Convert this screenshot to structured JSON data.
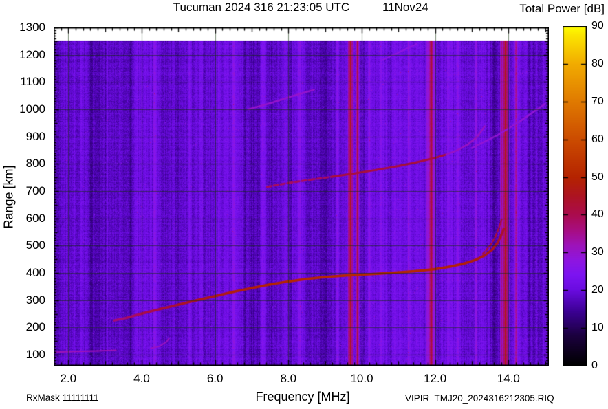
{
  "title": {
    "main": "Tucuman 2024 316 21:23:05 UTC",
    "date": "11Nov24"
  },
  "colorbar": {
    "label": "Total Power [dB]",
    "min": 0,
    "max": 90,
    "ticks": [
      {
        "v": 0,
        "label": "0"
      },
      {
        "v": 10,
        "label": "10"
      },
      {
        "v": 20,
        "label": "20"
      },
      {
        "v": 30,
        "label": "30"
      },
      {
        "v": 40,
        "label": "40"
      },
      {
        "v": 50,
        "label": "50"
      },
      {
        "v": 60,
        "label": "60"
      },
      {
        "v": 70,
        "label": "70"
      },
      {
        "v": 80,
        "label": "80"
      },
      {
        "v": 90,
        "label": "90"
      }
    ]
  },
  "axes": {
    "x_label": "Frequency [MHz]",
    "y_label": "Range [km]",
    "xlim": [
      1.6,
      15.1
    ],
    "ylim": [
      60,
      1300
    ],
    "x_ticks": [
      {
        "v": 2.0,
        "label": "2.0"
      },
      {
        "v": 4.0,
        "label": "4.0"
      },
      {
        "v": 6.0,
        "label": "6.0"
      },
      {
        "v": 8.0,
        "label": "8.0"
      },
      {
        "v": 10.0,
        "label": "10.0"
      },
      {
        "v": 12.0,
        "label": "12.0"
      },
      {
        "v": 14.0,
        "label": "14.0"
      }
    ],
    "y_ticks": [
      {
        "v": 100,
        "label": "100"
      },
      {
        "v": 200,
        "label": "200"
      },
      {
        "v": 300,
        "label": "300"
      },
      {
        "v": 400,
        "label": "400"
      },
      {
        "v": 500,
        "label": "500"
      },
      {
        "v": 600,
        "label": "600"
      },
      {
        "v": 700,
        "label": "700"
      },
      {
        "v": 800,
        "label": "800"
      },
      {
        "v": 900,
        "label": "900"
      },
      {
        "v": 1000,
        "label": "1000"
      },
      {
        "v": 1100,
        "label": "1100"
      },
      {
        "v": 1200,
        "label": "1200"
      },
      {
        "v": 1300,
        "label": "1300"
      }
    ]
  },
  "footer": {
    "rx_mask": "RxMask 11111111",
    "file": "VIPIR  TMJ20_2024316212305.RIQ"
  },
  "chart_data": {
    "type": "heatmap",
    "subtype": "ionogram-total-power",
    "title": "Tucuman 2024 316 21:23:05 UTC 11Nov24",
    "xlabel": "Frequency [MHz]",
    "ylabel": "Range [km]",
    "colorbar_label": "Total Power [dB]",
    "xlim": [
      1.6,
      15.1
    ],
    "ylim": [
      60,
      1300
    ],
    "zlim": [
      0,
      90
    ],
    "grid": true,
    "data_top_km": 1253,
    "background": {
      "base_db": 19.0,
      "column_jitter_db": 4.0,
      "pixel_noise_db": 4.6
    },
    "colormap_stops": [
      [
        0,
        "#000000"
      ],
      [
        8,
        "#1c0040"
      ],
      [
        14,
        "#3a0090"
      ],
      [
        20,
        "#6a0ce0"
      ],
      [
        24,
        "#7d14f2"
      ],
      [
        28,
        "#8f16e0"
      ],
      [
        32,
        "#9e13b8"
      ],
      [
        36,
        "#a80e80"
      ],
      [
        40,
        "#ab0c4e"
      ],
      [
        45,
        "#ad1422"
      ],
      [
        50,
        "#b52400"
      ],
      [
        60,
        "#cc4c00"
      ],
      [
        70,
        "#e07a00"
      ],
      [
        80,
        "#f2ac00"
      ],
      [
        88,
        "#fce800"
      ],
      [
        90,
        "#ffff00"
      ]
    ],
    "traces": [
      {
        "name": "E-layer-echo",
        "db": 32,
        "width": 2,
        "points": [
          [
            1.65,
            110
          ],
          [
            2.2,
            112
          ],
          [
            2.8,
            114
          ],
          [
            3.3,
            117
          ]
        ]
      },
      {
        "name": "Es-cusp",
        "db": 31,
        "width": 2,
        "points": [
          [
            4.25,
            124
          ],
          [
            4.5,
            132
          ],
          [
            4.68,
            148
          ],
          [
            4.75,
            162
          ]
        ]
      },
      {
        "name": "F-trace-1st-hop",
        "width": 3.5,
        "points": [
          [
            3.25,
            226,
            36
          ],
          [
            3.6,
            236,
            38
          ],
          [
            4.0,
            251,
            40
          ],
          [
            4.5,
            268,
            42
          ],
          [
            5.0,
            284,
            44
          ],
          [
            5.5,
            300,
            46
          ],
          [
            6.0,
            315,
            47
          ],
          [
            6.5,
            331,
            48
          ],
          [
            7.0,
            345,
            49
          ],
          [
            7.5,
            358,
            50
          ],
          [
            8.0,
            369,
            50
          ],
          [
            8.5,
            378,
            51
          ],
          [
            9.0,
            385,
            51
          ],
          [
            9.5,
            390,
            51
          ],
          [
            10.0,
            394,
            51
          ],
          [
            10.5,
            398,
            51
          ],
          [
            11.0,
            402,
            51
          ],
          [
            11.5,
            407,
            51
          ],
          [
            12.0,
            414,
            50
          ],
          [
            12.4,
            423,
            50
          ],
          [
            12.8,
            435,
            49
          ],
          [
            13.1,
            448,
            48
          ],
          [
            13.35,
            464,
            47
          ],
          [
            13.55,
            485,
            46
          ],
          [
            13.7,
            510,
            45
          ],
          [
            13.8,
            538,
            44
          ],
          [
            13.87,
            562,
            43
          ]
        ]
      },
      {
        "name": "F-cusp-spread",
        "db": 42,
        "width": 2.5,
        "dash": [
          4,
          3
        ],
        "points": [
          [
            13.3,
            470
          ],
          [
            13.5,
            500
          ],
          [
            13.65,
            535
          ],
          [
            13.75,
            570
          ],
          [
            13.82,
            600
          ]
        ]
      },
      {
        "name": "F-trace-2nd-hop-start",
        "db": 39,
        "width": 3,
        "dash": [
          6,
          4
        ],
        "points": [
          [
            7.42,
            716
          ],
          [
            8.0,
            730
          ],
          [
            8.6,
            742
          ],
          [
            9.2,
            753
          ]
        ]
      },
      {
        "name": "F-trace-2nd-hop",
        "db": 42,
        "width": 3,
        "points": [
          [
            9.2,
            753
          ],
          [
            9.8,
            765
          ],
          [
            10.4,
            778
          ],
          [
            11.0,
            792
          ],
          [
            11.5,
            806
          ],
          [
            12.0,
            822
          ],
          [
            12.3,
            834
          ]
        ]
      },
      {
        "name": "F-trace-2nd-hop-cusp",
        "db": 31,
        "width": 2.5,
        "points": [
          [
            12.3,
            834
          ],
          [
            12.6,
            850
          ],
          [
            12.9,
            872
          ],
          [
            13.15,
            900
          ],
          [
            13.35,
            938
          ]
        ]
      },
      {
        "name": "F-trace-3rd-hop-a",
        "db": 30,
        "width": 2.5,
        "points": [
          [
            6.9,
            1000
          ],
          [
            7.5,
            1022
          ],
          [
            8.1,
            1048
          ],
          [
            8.7,
            1072
          ]
        ]
      },
      {
        "name": "F-trace-3rd-hop-b",
        "db": 29,
        "width": 2.5,
        "points": [
          [
            13.0,
            858
          ],
          [
            13.7,
            905
          ],
          [
            14.3,
            955
          ],
          [
            15.0,
            1020
          ]
        ]
      },
      {
        "name": "F-trace-3rd-hop-c",
        "db": 28,
        "width": 2,
        "points": [
          [
            10.55,
            1180
          ],
          [
            11.0,
            1208
          ],
          [
            11.5,
            1240
          ]
        ]
      }
    ],
    "rfi_bands": [
      {
        "mhz": 2.35,
        "width": 0.1,
        "boost": 4
      },
      {
        "mhz": 3.05,
        "width": 0.08,
        "boost": 4
      },
      {
        "mhz": 4.35,
        "width": 0.1,
        "boost": 5
      },
      {
        "mhz": 5.3,
        "width": 0.08,
        "boost": 4
      },
      {
        "mhz": 6.1,
        "width": 0.06,
        "boost": 4
      },
      {
        "mhz": 6.5,
        "width": 0.08,
        "boost": 4
      },
      {
        "mhz": 7.32,
        "width": 0.26,
        "boost": 6
      },
      {
        "mhz": 8.3,
        "width": 0.1,
        "boost": 5
      },
      {
        "mhz": 8.8,
        "width": 0.08,
        "boost": 4
      },
      {
        "mhz": 9.33,
        "width": 0.1,
        "boost": 6
      },
      {
        "mhz": 10.2,
        "width": 0.1,
        "boost": 5
      },
      {
        "mhz": 10.5,
        "width": 0.08,
        "boost": 4
      },
      {
        "mhz": 10.9,
        "width": 0.1,
        "boost": 5
      },
      {
        "mhz": 11.28,
        "width": 0.12,
        "boost": 5
      },
      {
        "mhz": 12.35,
        "width": 0.08,
        "boost": 4
      },
      {
        "mhz": 12.62,
        "width": 0.12,
        "boost": 6
      },
      {
        "mhz": 13.1,
        "width": 0.1,
        "boost": 5
      },
      {
        "mhz": 13.45,
        "width": 0.06,
        "boost": 4
      },
      {
        "mhz": 14.2,
        "width": 0.1,
        "boost": 12
      },
      {
        "mhz": 14.45,
        "width": 0.08,
        "boost": 5
      },
      {
        "mhz": 14.75,
        "width": 0.1,
        "boost": 5
      },
      {
        "mhz": 2.6,
        "width": 0.1,
        "boost": -4
      },
      {
        "mhz": 3.7,
        "width": 0.12,
        "boost": -4
      },
      {
        "mhz": 5.7,
        "width": 0.1,
        "boost": -4
      },
      {
        "mhz": 6.8,
        "width": 0.08,
        "boost": -3
      },
      {
        "mhz": 8.05,
        "width": 0.1,
        "boost": -4
      },
      {
        "mhz": 10.05,
        "width": 0.08,
        "boost": -3
      },
      {
        "mhz": 12.1,
        "width": 0.08,
        "boost": -3
      },
      {
        "mhz": 13.6,
        "width": 0.08,
        "boost": -4
      },
      {
        "mhz": 14.55,
        "width": 0.06,
        "boost": -3
      },
      {
        "mhz": 9.68,
        "width": 0.08,
        "set": 47
      },
      {
        "mhz": 9.87,
        "width": 0.05,
        "set": 43
      },
      {
        "mhz": 11.87,
        "width": 0.2,
        "set": 38
      },
      {
        "mhz": 11.9,
        "width": 0.06,
        "set": 46
      },
      {
        "mhz": 13.8,
        "width": 0.04,
        "set": 40
      },
      {
        "mhz": 13.91,
        "width": 0.1,
        "set": 49
      }
    ]
  }
}
